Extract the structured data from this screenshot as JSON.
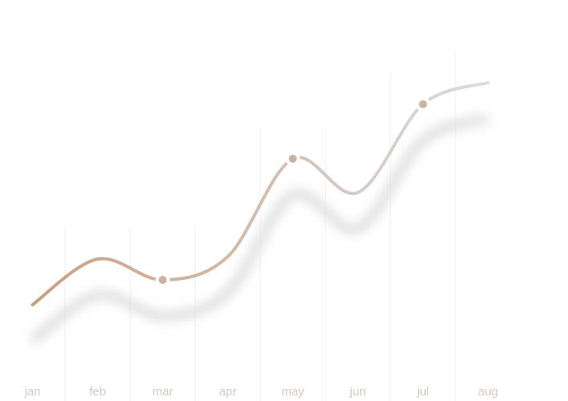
{
  "chart_data": {
    "type": "line",
    "categories": [
      "jan",
      "feb",
      "mar",
      "apr",
      "may",
      "jun",
      "jul",
      "aug"
    ],
    "values": [
      120,
      177,
      151,
      180,
      302,
      260,
      370,
      397
    ],
    "ylim": [
      0,
      500
    ],
    "color": [
      "#c9a07f",
      "#dcdbe0"
    ],
    "markers": [
      false,
      false,
      true,
      false,
      true,
      false,
      true,
      false
    ],
    "grid": true
  }
}
